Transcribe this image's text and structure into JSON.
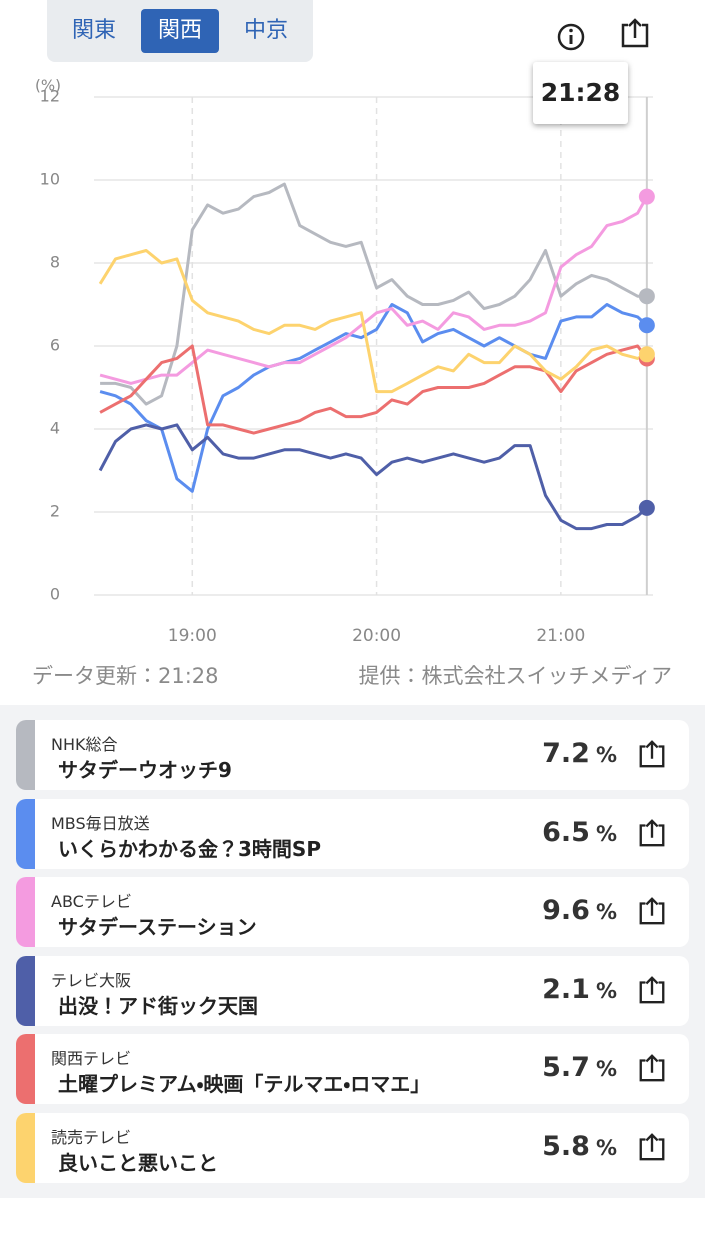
{
  "tabs": [
    {
      "label": "関東"
    },
    {
      "label": "関西",
      "selected": true
    },
    {
      "label": "中京"
    }
  ],
  "tooltip": "21:28",
  "chart_data": {
    "type": "line",
    "y_unit": "(%)",
    "x": [
      1110,
      1115,
      1120,
      1125,
      1130,
      1135,
      1140,
      1145,
      1150,
      1155,
      1160,
      1165,
      1170,
      1175,
      1180,
      1185,
      1190,
      1195,
      1200,
      1205,
      1210,
      1215,
      1220,
      1225,
      1230,
      1235,
      1240,
      1245,
      1250,
      1255,
      1260,
      1265,
      1270,
      1275,
      1280,
      1285,
      1288
    ],
    "xlim": [
      1108,
      1290
    ],
    "xticks": [
      {
        "value": 1140,
        "label": "19:00"
      },
      {
        "value": 1200,
        "label": "20:00"
      },
      {
        "value": 1260,
        "label": "21:00"
      }
    ],
    "ylim": [
      0,
      12
    ],
    "yticks": [
      0,
      2,
      4,
      6,
      8,
      10,
      12
    ],
    "grid": true,
    "end_markers": true,
    "series": [
      {
        "name": "NHK総合",
        "program": "サタデーウオッチ9",
        "color": "#b6b9c0",
        "values": [
          5.1,
          5.1,
          5.0,
          4.6,
          4.8,
          6.0,
          8.8,
          9.4,
          9.2,
          9.3,
          9.6,
          9.7,
          9.9,
          8.9,
          8.7,
          8.5,
          8.4,
          8.5,
          7.4,
          7.6,
          7.2,
          7.0,
          7.0,
          7.1,
          7.3,
          6.9,
          7.0,
          7.2,
          7.6,
          8.3,
          7.2,
          7.5,
          7.7,
          7.6,
          7.4,
          7.2,
          7.2
        ]
      },
      {
        "name": "MBS毎日放送",
        "program": "いくらかわかる金？3時間SP",
        "color": "#5b8def",
        "values": [
          4.9,
          4.8,
          4.6,
          4.2,
          4.0,
          2.8,
          2.5,
          4.0,
          4.8,
          5.0,
          5.3,
          5.5,
          5.6,
          5.7,
          5.9,
          6.1,
          6.3,
          6.2,
          6.4,
          7.0,
          6.8,
          6.1,
          6.3,
          6.4,
          6.2,
          6.0,
          6.2,
          6.0,
          5.8,
          5.7,
          6.6,
          6.7,
          6.7,
          7.0,
          6.8,
          6.7,
          6.5
        ]
      },
      {
        "name": "ABCテレビ",
        "program": "サタデーステーション",
        "color": "#f49be0",
        "values": [
          5.3,
          5.2,
          5.1,
          5.2,
          5.3,
          5.3,
          5.6,
          5.9,
          5.8,
          5.7,
          5.6,
          5.5,
          5.6,
          5.6,
          5.8,
          6.0,
          6.2,
          6.5,
          6.8,
          6.9,
          6.5,
          6.6,
          6.4,
          6.8,
          6.7,
          6.4,
          6.5,
          6.5,
          6.6,
          6.8,
          7.9,
          8.2,
          8.4,
          8.9,
          9.0,
          9.2,
          9.6
        ]
      },
      {
        "name": "テレビ大阪",
        "program": "出没！アド街ック天国",
        "color": "#4f5fa8",
        "values": [
          3.0,
          3.7,
          4.0,
          4.1,
          4.0,
          4.1,
          3.5,
          3.8,
          3.4,
          3.3,
          3.3,
          3.4,
          3.5,
          3.5,
          3.4,
          3.3,
          3.4,
          3.3,
          2.9,
          3.2,
          3.3,
          3.2,
          3.3,
          3.4,
          3.3,
          3.2,
          3.3,
          3.6,
          3.6,
          2.4,
          1.8,
          1.6,
          1.6,
          1.7,
          1.7,
          1.9,
          2.1
        ]
      },
      {
        "name": "関西テレビ",
        "program": "土曜プレミアム・映画「テルマエ・ロマエ」",
        "color": "#ec6f6f",
        "values": [
          4.4,
          4.6,
          4.8,
          5.2,
          5.6,
          5.7,
          6.0,
          4.1,
          4.1,
          4.0,
          3.9,
          4.0,
          4.1,
          4.2,
          4.4,
          4.5,
          4.3,
          4.3,
          4.4,
          4.7,
          4.6,
          4.9,
          5.0,
          5.0,
          5.0,
          5.1,
          5.3,
          5.5,
          5.5,
          5.4,
          4.9,
          5.4,
          5.6,
          5.8,
          5.9,
          6.0,
          5.7
        ]
      },
      {
        "name": "読売テレビ",
        "program": "良いこと悪いこと",
        "color": "#fdd36e",
        "values": [
          7.5,
          8.1,
          8.2,
          8.3,
          8.0,
          8.1,
          7.1,
          6.8,
          6.7,
          6.6,
          6.4,
          6.3,
          6.5,
          6.5,
          6.4,
          6.6,
          6.7,
          6.8,
          4.9,
          4.9,
          5.1,
          5.3,
          5.5,
          5.4,
          5.8,
          5.6,
          5.6,
          6.0,
          5.8,
          5.4,
          5.2,
          5.5,
          5.9,
          6.0,
          5.8,
          5.7,
          5.8
        ]
      }
    ]
  },
  "footer": {
    "updated": "データ更新：21:28",
    "source": "提供：株式会社スイッチメディア"
  },
  "rating_unit": "%"
}
